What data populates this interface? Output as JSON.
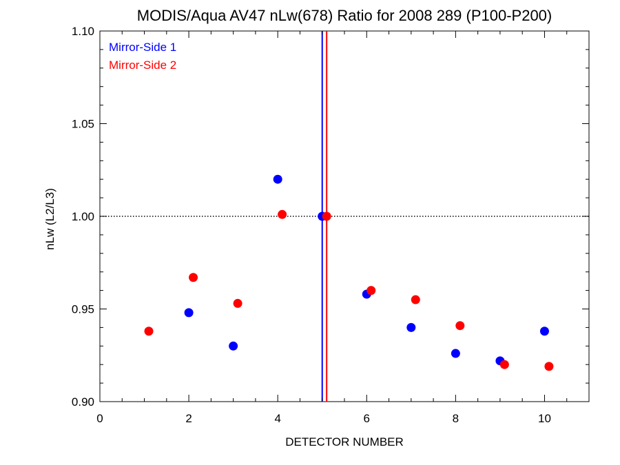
{
  "chart_data": {
    "type": "scatter",
    "title": "MODIS/Aqua AV47 nLw(678) Ratio for 2008 289 (P100-P200)",
    "xlabel": "DETECTOR NUMBER",
    "ylabel": "nLw (L2/L3)",
    "xlim": [
      0,
      11
    ],
    "ylim": [
      0.9,
      1.1
    ],
    "xticks": [
      0,
      2,
      4,
      6,
      8,
      10
    ],
    "yticks": [
      0.9,
      0.95,
      1.0,
      1.05,
      1.1
    ],
    "xtick_labels": [
      "0",
      "2",
      "4",
      "6",
      "8",
      "10"
    ],
    "ytick_labels": [
      "0.90",
      "0.95",
      "1.00",
      "1.05",
      "1.10"
    ],
    "reference_line": {
      "y": 1.0,
      "style": "dotted",
      "color": "#000000"
    },
    "vertical_lines": [
      {
        "x": 5.0,
        "color": "#0000ff"
      },
      {
        "x": 5.1,
        "color": "#ff0000"
      }
    ],
    "legend_position": "top-left",
    "series": [
      {
        "name": "Mirror-Side 1",
        "color": "#0000ff",
        "x": [
          2,
          3,
          4,
          5,
          6,
          7,
          8,
          9,
          10
        ],
        "y": [
          0.948,
          0.93,
          1.02,
          1.0,
          0.958,
          0.94,
          0.926,
          0.922,
          0.938
        ]
      },
      {
        "name": "Mirror-Side 2",
        "color": "#ff0000",
        "x": [
          1.1,
          2.1,
          3.1,
          4.1,
          5.1,
          6.1,
          7.1,
          8.1,
          9.1,
          10.1
        ],
        "y": [
          0.938,
          0.967,
          0.953,
          1.001,
          1.0,
          0.96,
          0.955,
          0.941,
          0.92,
          0.919
        ]
      }
    ]
  }
}
